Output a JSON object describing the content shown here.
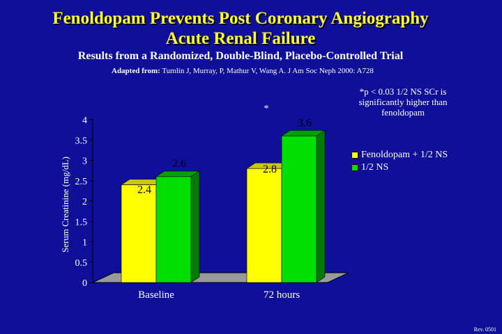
{
  "slide": {
    "title_line1": "Fenoldopam Prevents Post Coronary Angiography",
    "title_line2": "Acute Renal Failure",
    "subtitle": "Results from a Randomized, Double-Blind, Placebo-Controlled Trial",
    "source_prefix": "Adapted from:",
    "source_text": "Tumlin J, Murray, P, Mathur V, Wang A. J Am Soc Neph 2000: A728",
    "note": "*p < 0.03 1/2 NS SCr is significantly higher than fenoldopam",
    "footer": "Rev. 0501"
  },
  "chart_data": {
    "type": "bar",
    "ylabel": "Serum Creatinine (mg/dL)",
    "ylim": [
      0,
      4
    ],
    "yticks": [
      "0",
      "0.5",
      "1",
      "1.5",
      "2",
      "2.5",
      "3",
      "3.5",
      "4"
    ],
    "categories": [
      "Baseline",
      "72 hours"
    ],
    "series": [
      {
        "name": "Fenoldopam + 1/2 NS",
        "values": [
          2.4,
          2.8
        ],
        "labels": [
          "2.4",
          "2.8"
        ],
        "color": "#ffff00",
        "top_color": "#c8c800",
        "side_color": "#a8a800"
      },
      {
        "name": "1/2 NS",
        "values": [
          2.6,
          3.6
        ],
        "labels": [
          "2.6",
          "3.6"
        ],
        "color": "#00dd00",
        "top_color": "#00a000",
        "side_color": "#007a00"
      }
    ],
    "annotations": [
      {
        "text": "*",
        "category": "72 hours"
      }
    ],
    "colors": {
      "background": "#0f0f99",
      "floor": "#9a9a9a",
      "axis": "#000000"
    }
  }
}
